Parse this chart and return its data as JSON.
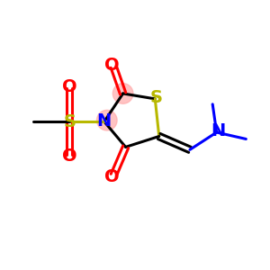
{
  "bg_color": "#ffffff",
  "atom_colors": {
    "S_ring": "#b8b800",
    "S_sulfonyl": "#b8b800",
    "N": "#0000ff",
    "O": "#ff0000",
    "C": "#000000"
  },
  "ring_highlight_color": "#ffaaaa",
  "ring_highlight_alpha": 0.7,
  "bond_color": "#000000",
  "bond_width": 2.2,
  "font_size_atom": 14,
  "xlim": [
    0,
    10
  ],
  "ylim": [
    0,
    10
  ]
}
